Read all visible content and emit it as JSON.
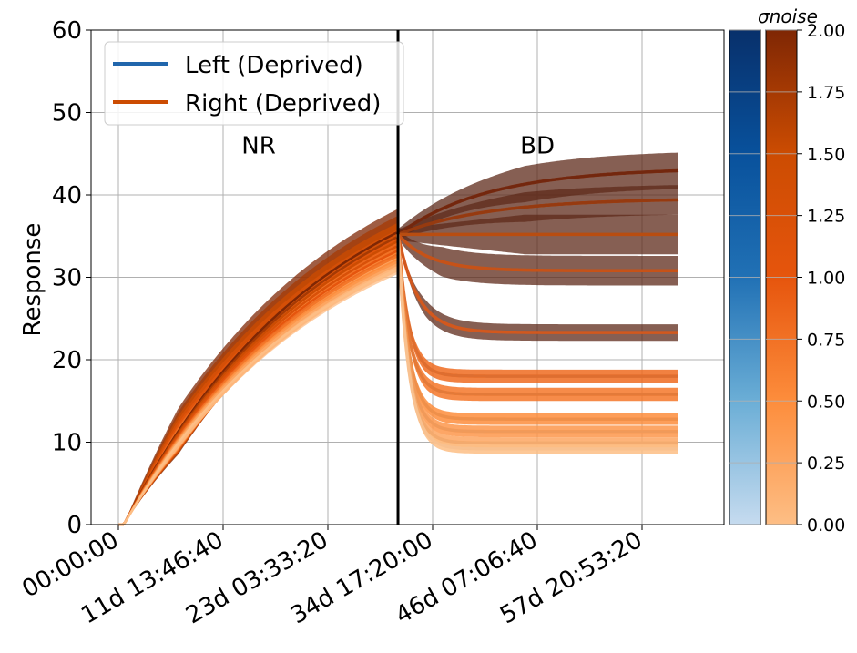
{
  "chart_data": {
    "type": "line",
    "ylabel": "Response",
    "ylim": [
      0,
      60
    ],
    "yticks": [
      0,
      10,
      20,
      30,
      40,
      50,
      60
    ],
    "xticks": [
      "00:00:00",
      "11d 13:46:40",
      "23d 03:33:20",
      "34d 17:20:00",
      "46d 07:06:40",
      "57d 20:53:20"
    ],
    "grid": true,
    "legend_position": "top-left",
    "legend": [
      {
        "label": "Left (Deprived)",
        "color": "#2166ac"
      },
      {
        "label": "Right (Deprived)",
        "color": "#cc4c02"
      }
    ],
    "annotations": [
      {
        "text": "NR",
        "x_day": 15.5,
        "y": 46
      },
      {
        "text": "BD",
        "x_day": 46.3,
        "y": 46
      }
    ],
    "switch_day": 30.9,
    "colorbar": {
      "label": "σnoise",
      "range": [
        0,
        2
      ],
      "ticks": [
        "0.00",
        "0.25",
        "0.50",
        "0.75",
        "1.00",
        "1.25",
        "1.50",
        "1.75",
        "2.00"
      ],
      "left_colors": [
        "#c6dbef",
        "#6baed6",
        "#2171b5",
        "#08519c",
        "#08306b"
      ],
      "right_colors": [
        "#fdbe85",
        "#fd8d3c",
        "#e6550d",
        "#cc4c02",
        "#7f2704"
      ]
    },
    "x_range_days": [
      0,
      61.9
    ],
    "series": [
      {
        "sigma": 2.0,
        "y_start": 35.2,
        "y_end": 43.3,
        "band": 2.2
      },
      {
        "sigma": 1.75,
        "y_start": 35.2,
        "y_end": 39.6,
        "band": 1.8
      },
      {
        "sigma": 1.5,
        "y_start": 35.2,
        "y_end": 35.2,
        "band": 2.4
      },
      {
        "sigma": 1.25,
        "y_start": 35.2,
        "y_end": 30.8,
        "band": 1.8
      },
      {
        "sigma": 1.0,
        "y_start": 35.2,
        "y_end": 23.3,
        "band": 1.0
      },
      {
        "sigma": 0.8,
        "y_start": 35.2,
        "y_end": 18.0,
        "band": 0.8
      },
      {
        "sigma": 0.7,
        "y_start": 35.2,
        "y_end": 15.8,
        "band": 0.8
      },
      {
        "sigma": 0.5,
        "y_start": 35.2,
        "y_end": 12.8,
        "band": 0.7
      },
      {
        "sigma": 0.4,
        "y_start": 35.2,
        "y_end": 11.3,
        "band": 0.7
      },
      {
        "sigma": 0.25,
        "y_start": 35.2,
        "y_end": 9.9,
        "band": 0.7
      },
      {
        "sigma": 0.0,
        "y_start": 35.2,
        "y_end": 9.2,
        "band": 0.6
      }
    ]
  }
}
